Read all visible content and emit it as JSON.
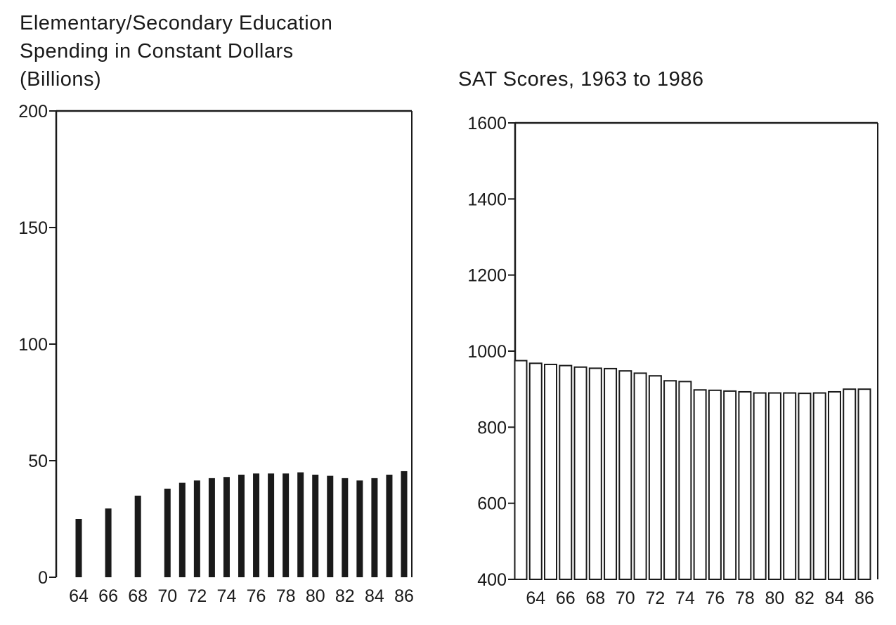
{
  "charts": [
    {
      "type": "bar",
      "title_lines": [
        "Elementary/Secondary Education",
        "Spending in Constant Dollars",
        "(Billions)"
      ],
      "x": [
        64,
        66,
        68,
        70,
        71,
        72,
        73,
        74,
        75,
        76,
        77,
        78,
        79,
        80,
        81,
        82,
        83,
        84,
        85,
        86
      ],
      "values": [
        25,
        29.5,
        35,
        38,
        40.5,
        41.5,
        42.5,
        43,
        44,
        44.5,
        44.5,
        44.5,
        45,
        44,
        43.5,
        42.5,
        41.5,
        42.5,
        44,
        45.5
      ],
      "ylim": [
        0,
        200
      ],
      "yticks": [
        0,
        50,
        100,
        150,
        200
      ],
      "xtick_labels": [
        "64",
        "66",
        "68",
        "70",
        "72",
        "74",
        "76",
        "78",
        "80",
        "82",
        "84",
        "86"
      ],
      "bar_style": "solid",
      "color": "#1a1a1a"
    },
    {
      "type": "bar",
      "title_lines": [
        "SAT Scores, 1963 to 1986"
      ],
      "x": [
        63,
        64,
        65,
        66,
        67,
        68,
        69,
        70,
        71,
        72,
        73,
        74,
        75,
        76,
        77,
        78,
        79,
        80,
        81,
        82,
        83,
        84,
        85,
        86
      ],
      "values": [
        975,
        968,
        965,
        962,
        958,
        955,
        954,
        948,
        942,
        935,
        922,
        920,
        898,
        897,
        895,
        893,
        890,
        890,
        890,
        889,
        890,
        893,
        900,
        900
      ],
      "ylim": [
        400,
        1600
      ],
      "yticks": [
        400,
        600,
        800,
        1000,
        1200,
        1400,
        1600
      ],
      "xtick_labels": [
        "64",
        "66",
        "68",
        "70",
        "72",
        "74",
        "76",
        "78",
        "80",
        "82",
        "84",
        "86"
      ],
      "bar_style": "outline",
      "color": "#1a1a1a"
    }
  ]
}
